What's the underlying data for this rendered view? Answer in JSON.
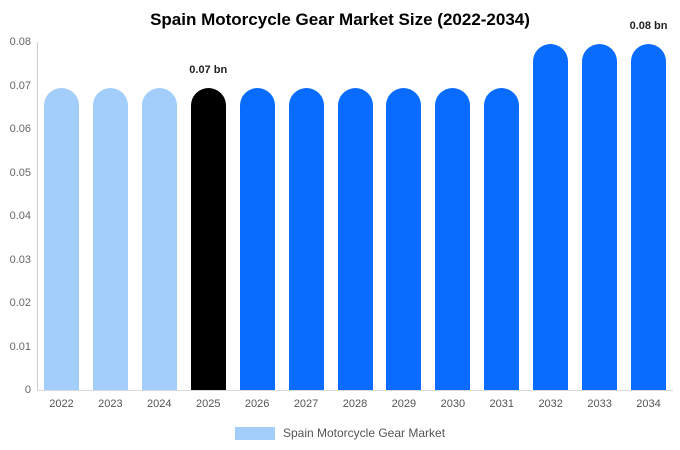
{
  "title": "Spain Motorcycle Gear Market Size (2022-2034)",
  "chart_data": {
    "type": "bar",
    "title": "Spain Motorcycle Gear Market Size (2022-2034)",
    "categories": [
      "2022",
      "2023",
      "2024",
      "2025",
      "2026",
      "2027",
      "2028",
      "2029",
      "2030",
      "2031",
      "2032",
      "2033",
      "2034"
    ],
    "values": [
      0.0695,
      0.0695,
      0.0695,
      0.0695,
      0.0695,
      0.0695,
      0.0695,
      0.0695,
      0.0695,
      0.0695,
      0.0795,
      0.0795,
      0.0795
    ],
    "series_name": "Spain Motorcycle Gear Market",
    "unit": "bn",
    "xlabel": "",
    "ylabel": "",
    "ylim": [
      0,
      0.08
    ],
    "yticks": [
      "0",
      "0.01",
      "0.02",
      "0.03",
      "0.04",
      "0.05",
      "0.06",
      "0.07",
      "0.08"
    ],
    "grid": false,
    "legend_position": "bottom",
    "bar_colors": [
      "#a3cdfb",
      "#a3cdfb",
      "#a3cdfb",
      "#000000",
      "#0a6cff",
      "#0a6cff",
      "#0a6cff",
      "#0a6cff",
      "#0a6cff",
      "#0a6cff",
      "#0a6cff",
      "#0a6cff",
      "#0a6cff"
    ],
    "annotations": [
      {
        "category": "2025",
        "index": 3,
        "text": "0.07 bn"
      },
      {
        "category": "2034",
        "index": 12,
        "text": "0.08 bn"
      }
    ]
  },
  "legend": {
    "label": "Spain Motorcycle Gear Market",
    "swatch_color": "#a3cdfb"
  },
  "colors": {
    "light_blue": "#a3cdfb",
    "blue": "#0a6cff",
    "highlight_black": "#000000",
    "axis_line": "#cccccc",
    "baseline": "#d9d9d9",
    "tick_text": "#666666",
    "annotation_text": "#222222",
    "title_text": "#000000",
    "legend_text": "#555555",
    "background": "#ffffff"
  }
}
